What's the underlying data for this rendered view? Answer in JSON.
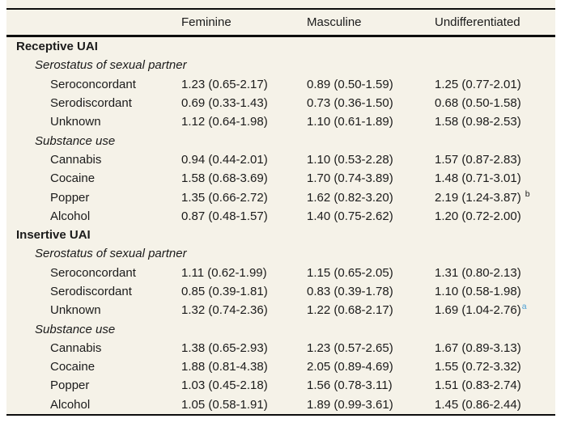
{
  "colors": {
    "page_background": "#ffffff",
    "table_background": "#f5f2e8",
    "rule": "#0d0d0d",
    "text": "#1b1b1b",
    "footnote_marker_link": "#4da0d4"
  },
  "header": {
    "columns": [
      "Feminine",
      "Masculine",
      "Undifferentiated"
    ]
  },
  "rows": [
    {
      "type": "section",
      "label": "Receptive UAI"
    },
    {
      "type": "group",
      "label": "Serostatus of sexual partner"
    },
    {
      "type": "data",
      "label": "Seroconcordant",
      "feminine": "1.23 (0.65-2.17)",
      "masculine": "0.89 (0.50-1.59)",
      "undifferentiated": "1.25 (0.77-2.01)"
    },
    {
      "type": "data",
      "label": "Serodiscordant",
      "feminine": "0.69 (0.33-1.43)",
      "masculine": "0.73 (0.36-1.50)",
      "undifferentiated": "0.68 (0.50-1.58)"
    },
    {
      "type": "data",
      "label": "Unknown",
      "feminine": "1.12 (0.64-1.98)",
      "masculine": "1.10 (0.61-1.89)",
      "undifferentiated": "1.58 (0.98-2.53)"
    },
    {
      "type": "group",
      "label": "Substance use"
    },
    {
      "type": "data",
      "label": "Cannabis",
      "feminine": "0.94 (0.44-2.01)",
      "masculine": "1.10 (0.53-2.28)",
      "undifferentiated": "1.57 (0.87-2.83)"
    },
    {
      "type": "data",
      "label": "Cocaine",
      "feminine": "1.58 (0.68-3.69)",
      "masculine": "1.70 (0.74-3.89)",
      "undifferentiated": "1.48 (0.71-3.01)"
    },
    {
      "type": "data",
      "label": "Popper",
      "feminine": "1.35 (0.66-2.72)",
      "masculine": "1.62 (0.82-3.20)",
      "undifferentiated": "2.19 (1.24-3.87)",
      "undifferentiated_sup": "b"
    },
    {
      "type": "data",
      "label": "Alcohol",
      "feminine": "0.87 (0.48-1.57)",
      "masculine": "1.40 (0.75-2.62)",
      "undifferentiated": "1.20 (0.72-2.00)"
    },
    {
      "type": "section",
      "label": "Insertive UAI"
    },
    {
      "type": "group",
      "label": "Serostatus of sexual partner"
    },
    {
      "type": "data",
      "label": "Seroconcordant",
      "feminine": "1.11 (0.62-1.99)",
      "masculine": "1.15 (0.65-2.05)",
      "undifferentiated": "1.31 (0.80-2.13)"
    },
    {
      "type": "data",
      "label": "Serodiscordant",
      "feminine": "0.85 (0.39-1.81)",
      "masculine": "0.83 (0.39-1.78)",
      "undifferentiated": "1.10 (0.58-1.98)"
    },
    {
      "type": "data",
      "label": "Unknown",
      "feminine": "1.32 (0.74-2.36)",
      "masculine": "1.22 (0.68-2.17)",
      "undifferentiated": "1.69 (1.04-2.76)",
      "undifferentiated_sup": "a"
    },
    {
      "type": "group",
      "label": "Substance use"
    },
    {
      "type": "data",
      "label": "Cannabis",
      "feminine": "1.38 (0.65-2.93)",
      "masculine": "1.23 (0.57-2.65)",
      "undifferentiated": "1.67 (0.89-3.13)"
    },
    {
      "type": "data",
      "label": "Cocaine",
      "feminine": "1.88 (0.81-4.38)",
      "masculine": "2.05 (0.89-4.69)",
      "undifferentiated": "1.55 (0.72-3.32)"
    },
    {
      "type": "data",
      "label": "Popper",
      "feminine": "1.03 (0.45-2.18)",
      "masculine": "1.56 (0.78-3.11)",
      "undifferentiated": "1.51 (0.83-2.74)"
    },
    {
      "type": "data",
      "label": "Alcohol",
      "feminine": "1.05 (0.58-1.91)",
      "masculine": "1.89 (0.99-3.61)",
      "undifferentiated": "1.45 (0.86-2.44)"
    }
  ]
}
